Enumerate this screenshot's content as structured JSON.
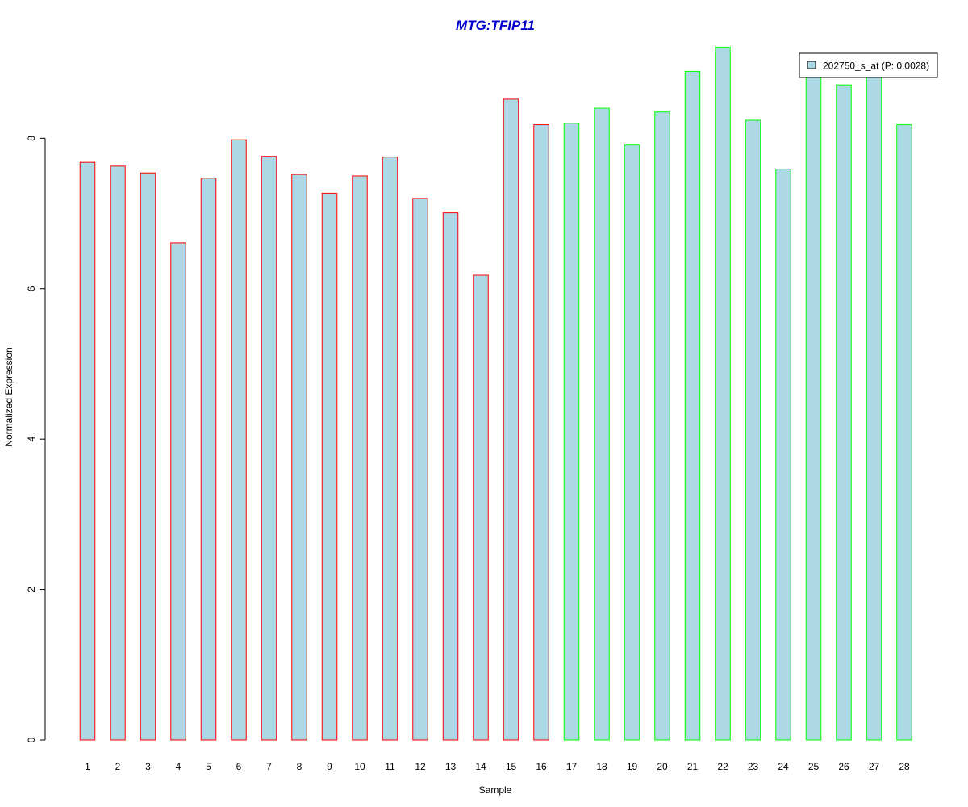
{
  "chart_data": {
    "type": "bar",
    "title": "MTG:TFIP11",
    "xlabel": "Sample",
    "ylabel": "Normalized Expression",
    "ylim": [
      0,
      9.2
    ],
    "yticks": [
      0,
      2,
      4,
      6,
      8
    ],
    "grid": false,
    "legend_position": "top-right",
    "categories": [
      "1",
      "2",
      "3",
      "4",
      "5",
      "6",
      "7",
      "8",
      "9",
      "10",
      "11",
      "12",
      "13",
      "14",
      "15",
      "16",
      "17",
      "18",
      "19",
      "20",
      "21",
      "22",
      "23",
      "24",
      "25",
      "26",
      "27",
      "28"
    ],
    "series": [
      {
        "name": "202750_s_at (P: 0.0028)",
        "values": [
          7.68,
          7.63,
          7.54,
          6.61,
          7.47,
          7.98,
          7.76,
          7.52,
          7.27,
          7.5,
          7.75,
          7.2,
          7.01,
          6.18,
          8.52,
          8.18,
          8.2,
          8.4,
          7.91,
          8.35,
          8.89,
          9.21,
          8.24,
          7.59,
          8.95,
          8.71,
          8.92,
          8.18
        ],
        "fill": "#add8e6",
        "border_colors": [
          "#ff0000",
          "#ff0000",
          "#ff0000",
          "#ff0000",
          "#ff0000",
          "#ff0000",
          "#ff0000",
          "#ff0000",
          "#ff0000",
          "#ff0000",
          "#ff0000",
          "#ff0000",
          "#ff0000",
          "#ff0000",
          "#ff0000",
          "#ff0000",
          "#00ff00",
          "#00ff00",
          "#00ff00",
          "#00ff00",
          "#00ff00",
          "#00ff00",
          "#00ff00",
          "#00ff00",
          "#00ff00",
          "#00ff00",
          "#00ff00",
          "#00ff00"
        ]
      }
    ],
    "colors": {
      "title": "#0000cc",
      "group1_border": "#ff0000",
      "group2_border": "#00ff00",
      "bar_fill": "#add8e6"
    }
  }
}
